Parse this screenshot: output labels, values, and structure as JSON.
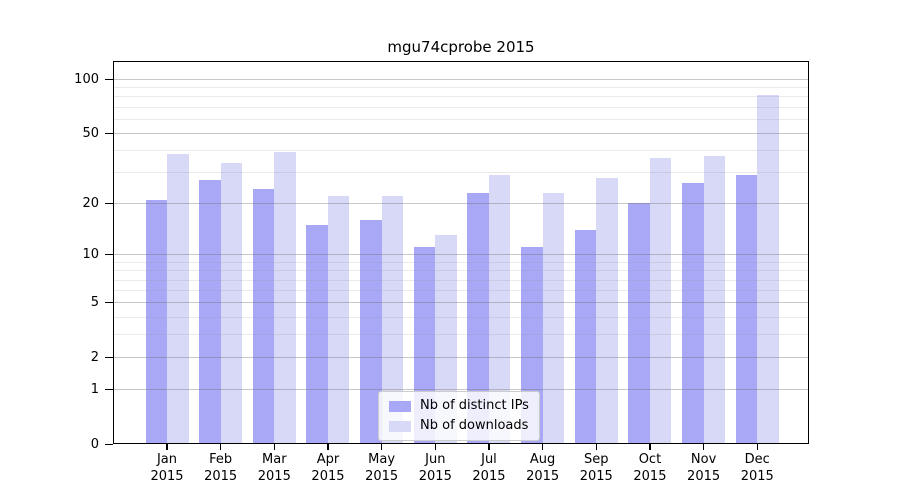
{
  "title": "mgu74cprobe 2015",
  "chart_data": {
    "type": "bar",
    "title": "mgu74cprobe 2015",
    "categories": [
      "Jan",
      "Feb",
      "Mar",
      "Apr",
      "May",
      "Jun",
      "Jul",
      "Aug",
      "Sep",
      "Oct",
      "Nov",
      "Dec"
    ],
    "category_year": "2015",
    "series": [
      {
        "name": "Nb of distinct IPs",
        "color": "#a8a8f6",
        "values": [
          21,
          27,
          24,
          15,
          16,
          11,
          23,
          11,
          14,
          20,
          26,
          29
        ]
      },
      {
        "name": "Nb of downloads",
        "color": "#d8d8f7",
        "values": [
          38,
          34,
          39,
          22,
          22,
          13,
          29,
          23,
          28,
          36,
          37,
          81
        ]
      }
    ],
    "xlabel": "",
    "ylabel": "",
    "yscale": "log1p",
    "ylim": [
      0,
      125
    ],
    "yticks": [
      100,
      50,
      20,
      10,
      5,
      2,
      1,
      0
    ],
    "ytick_labels": [
      "100",
      "50",
      "20",
      "10",
      "5",
      "2",
      "1",
      "0"
    ],
    "minor_gridlines": [
      3,
      4,
      6,
      7,
      8,
      9,
      30,
      40,
      60,
      70,
      80,
      90
    ],
    "grid": true,
    "legend_position": "lower center"
  },
  "legend": {
    "items": [
      {
        "label": "Nb of distinct IPs",
        "color": "#a8a8f6"
      },
      {
        "label": "Nb of downloads",
        "color": "#d8d8f7"
      }
    ]
  },
  "colors": {
    "background": "#ffffff",
    "axis": "#000000",
    "grid_major": "#c9c9c9",
    "grid_minor": "#e8e8e8",
    "legend_border": "#cccccc"
  }
}
